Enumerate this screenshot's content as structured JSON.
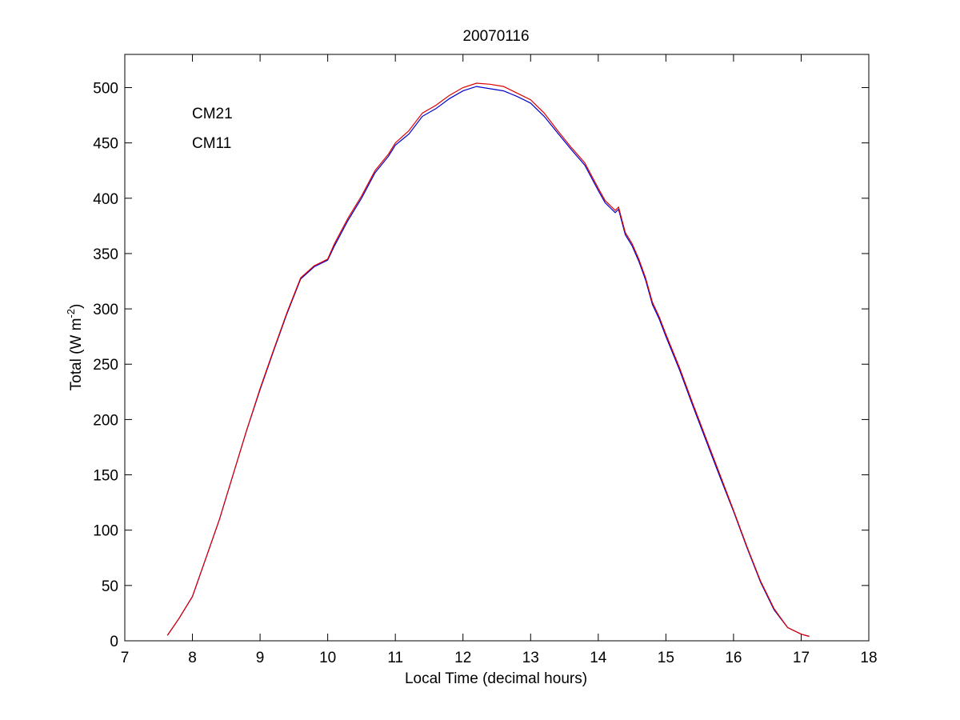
{
  "chart_data": {
    "type": "line",
    "title": "20070116",
    "xlabel": "Local Time (decimal hours)",
    "ylabel": {
      "main": "Total (W m",
      "sup": "-2",
      "close": ")"
    },
    "xlim": [
      7,
      18
    ],
    "ylim": [
      0,
      530
    ],
    "xticks": [
      7,
      8,
      9,
      10,
      11,
      12,
      13,
      14,
      15,
      16,
      17,
      18
    ],
    "yticks": [
      0,
      50,
      100,
      150,
      200,
      250,
      300,
      350,
      400,
      450,
      500
    ],
    "grid": false,
    "legend_position": "top-left",
    "series": [
      {
        "name": "CM21",
        "color": "#0000cc",
        "x": [
          7.63,
          7.8,
          8.0,
          8.2,
          8.4,
          8.6,
          8.8,
          9.0,
          9.2,
          9.4,
          9.6,
          9.8,
          10.0,
          10.1,
          10.3,
          10.5,
          10.7,
          10.9,
          11.0,
          11.2,
          11.4,
          11.6,
          11.8,
          12.0,
          12.2,
          12.4,
          12.6,
          12.8,
          13.0,
          13.2,
          13.4,
          13.6,
          13.8,
          14.0,
          14.1,
          14.25,
          14.3,
          14.4,
          14.5,
          14.6,
          14.7,
          14.8,
          14.9,
          15.0,
          15.2,
          15.4,
          15.6,
          15.8,
          16.0,
          16.2,
          16.4,
          16.6,
          16.8,
          17.0,
          17.12
        ],
        "y": [
          5,
          20,
          40,
          75,
          110,
          150,
          190,
          227,
          262,
          296,
          327,
          338,
          344,
          357,
          380,
          400,
          423,
          438,
          448,
          458,
          474,
          481,
          490,
          497,
          501,
          499,
          497,
          492,
          486,
          474,
          459,
          444,
          430,
          407,
          396,
          387,
          390,
          367,
          357,
          343,
          326,
          304,
          291,
          275,
          245,
          212,
          180,
          148,
          117,
          84,
          53,
          28,
          12,
          6,
          4
        ]
      },
      {
        "name": "CM11",
        "color": "#dd0000",
        "x": [
          7.63,
          7.8,
          8.0,
          8.2,
          8.4,
          8.6,
          8.8,
          9.0,
          9.2,
          9.4,
          9.6,
          9.8,
          10.0,
          10.1,
          10.3,
          10.5,
          10.7,
          10.9,
          11.0,
          11.2,
          11.4,
          11.6,
          11.8,
          12.0,
          12.2,
          12.4,
          12.6,
          12.8,
          13.0,
          13.2,
          13.4,
          13.6,
          13.8,
          14.0,
          14.1,
          14.25,
          14.3,
          14.4,
          14.5,
          14.6,
          14.7,
          14.8,
          14.9,
          15.0,
          15.2,
          15.4,
          15.6,
          15.8,
          16.0,
          16.2,
          16.4,
          16.6,
          16.8,
          17.0,
          17.12
        ],
        "y": [
          5,
          20,
          40,
          75,
          110,
          150,
          190,
          228,
          263,
          297,
          328,
          339,
          345,
          359,
          382,
          402,
          425,
          440,
          450,
          461,
          477,
          484,
          493,
          500,
          504,
          503,
          501,
          495,
          489,
          477,
          461,
          446,
          432,
          409,
          398,
          389,
          392,
          369,
          359,
          345,
          328,
          306,
          293,
          277,
          247,
          214,
          182,
          150,
          118,
          85,
          54,
          29,
          12,
          6,
          4
        ]
      }
    ]
  }
}
